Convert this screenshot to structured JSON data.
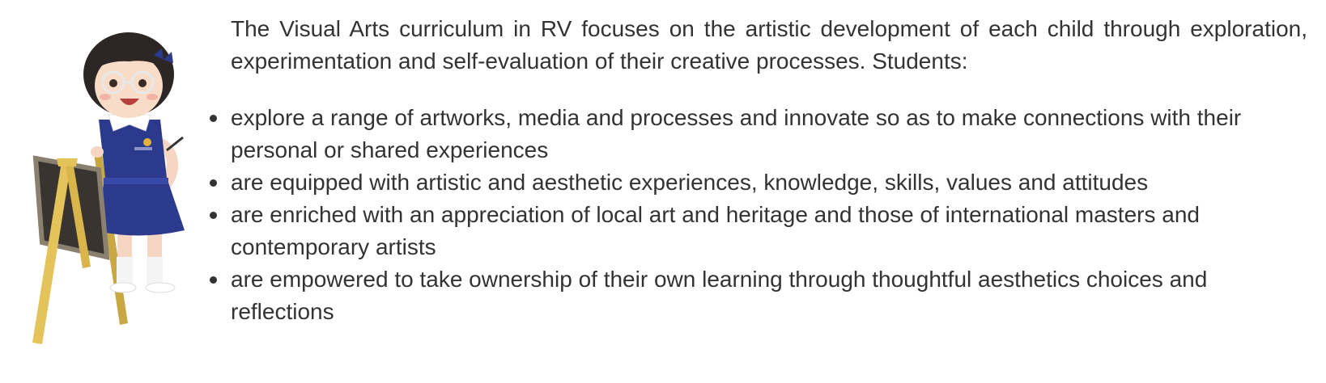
{
  "intro": "The Visual Arts curriculum in RV focuses on the artistic development of each child through exploration, experimentation and self-evaluation of their creative processes. Students:",
  "bullets": [
    "explore a range of artworks, media and processes and innovate so as to make connections with their personal or shared experiences",
    "are equipped with artistic and aesthetic experiences, knowledge, skills, values and attitudes",
    "are enriched with an appreciation of local art and heritage and those of international masters and contemporary artists",
    "are empowered to take ownership of their own learning through thoughtful aesthetics choices and reflections"
  ],
  "colors": {
    "text": "#333333",
    "uniform": "#2b3a8c",
    "easel": "#e3c35a",
    "board": "#3a3430"
  }
}
